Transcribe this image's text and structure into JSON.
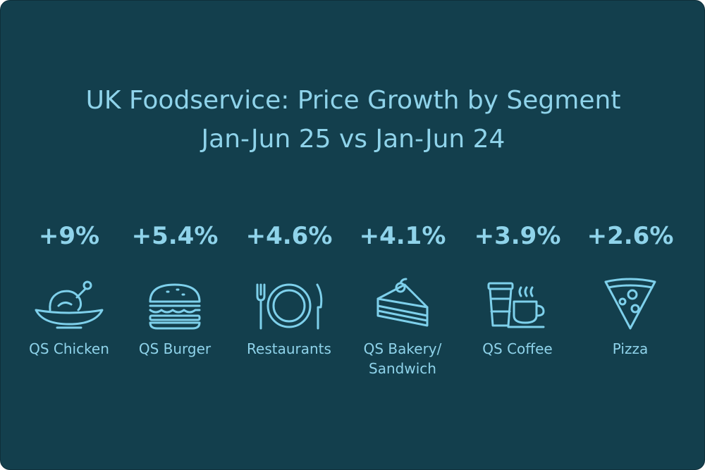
{
  "chart_data": {
    "type": "table",
    "title": "UK Foodservice: Price Growth by Segment",
    "subtitle": "Jan-Jun 25 vs Jan-Jun 24",
    "categories": [
      "QS Chicken",
      "QS Burger",
      "Restaurants",
      "QS Bakery/\nSandwich",
      "QS Coffee",
      "Pizza"
    ],
    "values": [
      9,
      5.4,
      4.6,
      4.1,
      3.9,
      2.6
    ],
    "value_labels": [
      "+9%",
      "+5.4%",
      "+4.6%",
      "+4.1%",
      "+3.9%",
      "+2.6%"
    ],
    "unit": "%"
  },
  "icons": [
    "chicken-icon",
    "burger-icon",
    "plate-cutlery-icon",
    "cake-slice-icon",
    "coffee-cups-icon",
    "pizza-slice-icon"
  ],
  "colors": {
    "background": "#133f4d",
    "accent": "#8fd3ea",
    "icon_stroke": "#7ed0eb"
  }
}
